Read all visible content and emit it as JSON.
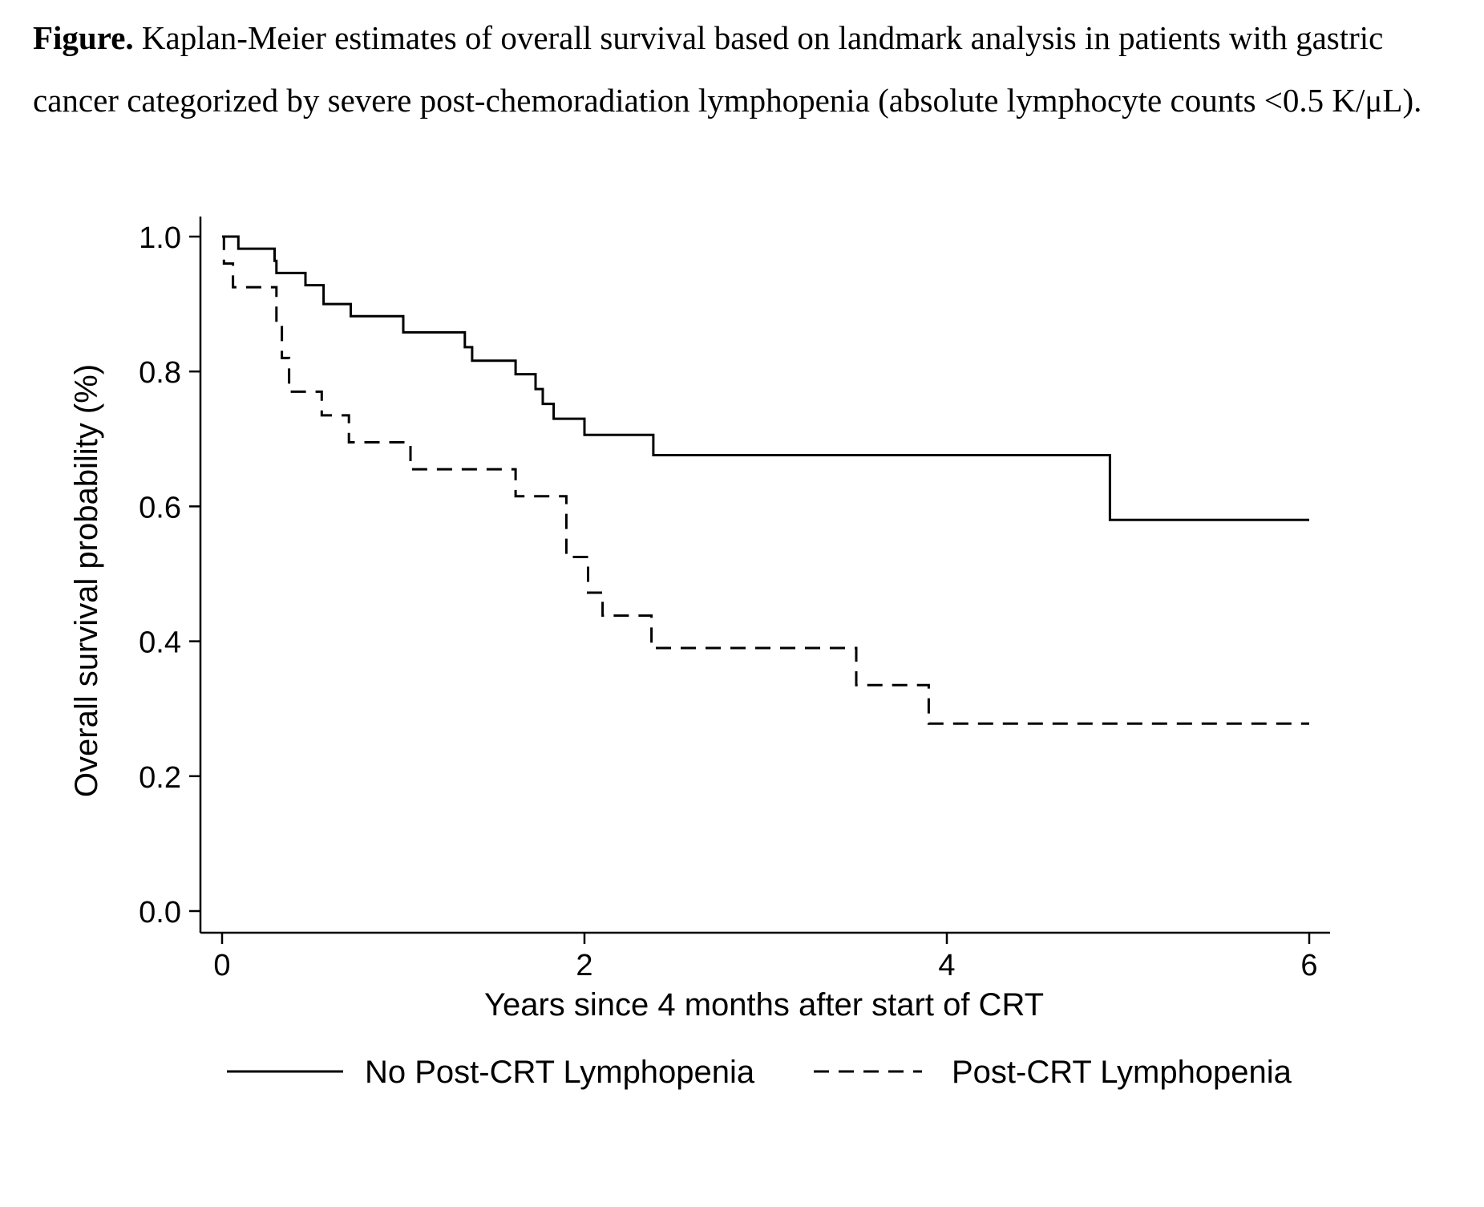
{
  "caption": {
    "label": "Figure.",
    "text": "Kaplan-Meier estimates of overall survival based on landmark analysis in patients with gastric cancer categorized by severe post-chemoradiation lymphopenia (absolute lymphocyte counts <0.5 K/μL)."
  },
  "chart_data": {
    "type": "line",
    "subtype": "kaplan-meier-step",
    "title": "",
    "xlabel": "Years since 4 months after start of CRT",
    "ylabel": "Overall survival probability (%)",
    "xlim": [
      0,
      6
    ],
    "ylim": [
      0,
      1
    ],
    "xticks": [
      0,
      2,
      4,
      6
    ],
    "xtick_labels": [
      "0",
      "2",
      "4",
      "6"
    ],
    "yticks": [
      0,
      0.2,
      0.4,
      0.6,
      0.8,
      1.0
    ],
    "ytick_labels": [
      "0.0",
      "0.2",
      "0.4",
      "0.6",
      "0.8",
      "1.0"
    ],
    "grid": false,
    "legend_position": "bottom",
    "series": [
      {
        "name": "No Post-CRT Lymphopenia",
        "line_style": "solid",
        "color": "#000000",
        "steps": [
          [
            0,
            1.0
          ],
          [
            0.09,
            0.982
          ],
          [
            0.29,
            0.964
          ],
          [
            0.3,
            0.946
          ],
          [
            0.46,
            0.928
          ],
          [
            0.56,
            0.9
          ],
          [
            0.71,
            0.882
          ],
          [
            1.0,
            0.858
          ],
          [
            1.34,
            0.836
          ],
          [
            1.38,
            0.816
          ],
          [
            1.62,
            0.796
          ],
          [
            1.73,
            0.774
          ],
          [
            1.77,
            0.752
          ],
          [
            1.83,
            0.73
          ],
          [
            2.0,
            0.706
          ],
          [
            2.38,
            0.676
          ],
          [
            4.9,
            0.58
          ],
          [
            6.0,
            0.58
          ]
        ]
      },
      {
        "name": "Post-CRT Lymphopenia",
        "line_style": "dashed",
        "color": "#000000",
        "steps": [
          [
            0,
            1.0
          ],
          [
            0.01,
            0.96
          ],
          [
            0.06,
            0.925
          ],
          [
            0.3,
            0.87
          ],
          [
            0.33,
            0.82
          ],
          [
            0.37,
            0.77
          ],
          [
            0.55,
            0.735
          ],
          [
            0.7,
            0.695
          ],
          [
            1.04,
            0.655
          ],
          [
            1.62,
            0.615
          ],
          [
            1.9,
            0.525
          ],
          [
            2.02,
            0.472
          ],
          [
            2.1,
            0.438
          ],
          [
            2.37,
            0.39
          ],
          [
            3.5,
            0.335
          ],
          [
            3.9,
            0.278
          ],
          [
            6.0,
            0.278
          ]
        ]
      }
    ]
  }
}
